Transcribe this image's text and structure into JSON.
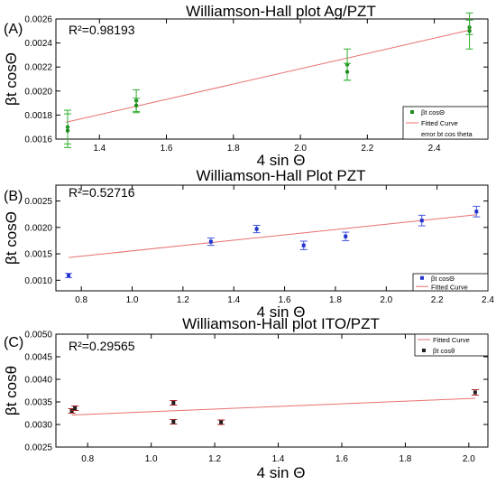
{
  "chart_data": [
    {
      "type": "scatter",
      "panel_label": "(A)",
      "title": "Williamson-Hall plot Ag/PZT",
      "xlabel": "4 sin Θ",
      "ylabel": "βt cosΘ",
      "r2_label": "R²=0.98193",
      "xlim": [
        1.27,
        2.56
      ],
      "ylim": [
        0.0016,
        0.0026
      ],
      "x_ticks": [
        1.4,
        1.6,
        1.8,
        2.0,
        2.2,
        2.4
      ],
      "x_tick_labels": [
        "1.4",
        "1.6",
        "1.8",
        "2.0",
        "2.2",
        "2.4"
      ],
      "y_ticks": [
        0.0016,
        0.0018,
        0.002,
        0.0022,
        0.0024,
        0.0026
      ],
      "y_tick_labels": [
        "0.0016",
        "0.0018",
        "0.0020",
        "0.0022",
        "0.0024",
        "0.0026"
      ],
      "grid": false,
      "legend_position": "bottom-right",
      "legend": [
        "βt cosΘ",
        "Fitted Curve",
        "error bt cos theta"
      ],
      "colors": {
        "points": "#1e8c1e",
        "error": "#2fae2f",
        "fit": "#e87070"
      },
      "series": [
        {
          "name": "βt cosΘ",
          "points": [
            {
              "x": 1.305,
              "y": 0.0017,
              "err": 0.00014
            },
            {
              "x": 1.305,
              "y": 0.00167,
              "err": 0.00014
            },
            {
              "x": 1.51,
              "y": 0.00192,
              "err": 9e-05
            },
            {
              "x": 1.51,
              "y": 0.00188,
              "err": 6e-05
            },
            {
              "x": 2.14,
              "y": 0.00222,
              "err": 0.00013
            },
            {
              "x": 2.14,
              "y": 0.00216,
              "err": 7e-05
            },
            {
              "x": 2.505,
              "y": 0.00253,
              "err": 6e-05
            },
            {
              "x": 2.505,
              "y": 0.0025,
              "err": 0.00015
            }
          ]
        }
      ],
      "fit": {
        "name": "Fitted Curve",
        "x": [
          1.3,
          2.51
        ],
        "y": [
          0.00174,
          0.00251
        ]
      }
    },
    {
      "type": "scatter",
      "panel_label": "(B)",
      "title": "Williamson-Hall Plot PZT",
      "xlabel": "4 sin Θ",
      "ylabel": "βt cosΘ",
      "r2_label": "R²=0.52716",
      "xlim": [
        0.7,
        2.4
      ],
      "ylim": [
        0.0008,
        0.0028
      ],
      "x_ticks": [
        0.8,
        1.0,
        1.2,
        1.4,
        1.6,
        1.8,
        2.0,
        2.2,
        2.4
      ],
      "x_tick_labels": [
        "0.8",
        "1.0",
        "1.2",
        "1.4",
        "1.6",
        "1.8",
        "2.0",
        "2.2",
        "2.4"
      ],
      "y_ticks": [
        0.001,
        0.0015,
        0.002,
        0.0025
      ],
      "y_tick_labels": [
        "0.0010",
        "0.0015",
        "0.0020",
        "0.0025"
      ],
      "grid": false,
      "legend_position": "bottom-right",
      "legend": [
        "βt cosΘ",
        "Fitted Curve"
      ],
      "colors": {
        "points": "#2233cc",
        "error": "#4455dd",
        "fit": "#e87070"
      },
      "series": [
        {
          "name": "βt cosΘ",
          "points": [
            {
              "x": 0.75,
              "y": 0.00109,
              "err": 4e-05
            },
            {
              "x": 1.31,
              "y": 0.00173,
              "err": 7e-05
            },
            {
              "x": 1.49,
              "y": 0.00197,
              "err": 7e-05
            },
            {
              "x": 1.675,
              "y": 0.00166,
              "err": 8e-05
            },
            {
              "x": 1.84,
              "y": 0.00183,
              "err": 8e-05
            },
            {
              "x": 2.14,
              "y": 0.00213,
              "err": 0.0001
            },
            {
              "x": 2.355,
              "y": 0.0023,
              "err": 0.0001
            }
          ]
        }
      ],
      "fit": {
        "name": "Fitted Curve",
        "x": [
          0.75,
          2.355
        ],
        "y": [
          0.00143,
          0.00224
        ]
      }
    },
    {
      "type": "scatter",
      "panel_label": "(C)",
      "title": "Williamson-Hall plot ITO/PZT",
      "xlabel": "4 sin Θ",
      "ylabel": "βt cosθ",
      "r2_label": "R²=0.29565",
      "xlim": [
        0.7,
        2.06
      ],
      "ylim": [
        0.0025,
        0.005
      ],
      "x_ticks": [
        0.8,
        1.0,
        1.2,
        1.4,
        1.6,
        1.8,
        2.0
      ],
      "x_tick_labels": [
        "0.8",
        "1.0",
        "1.2",
        "1.4",
        "1.6",
        "1.8",
        "2.0"
      ],
      "y_ticks": [
        0.0025,
        0.003,
        0.0035,
        0.004,
        0.0045,
        0.005
      ],
      "y_tick_labels": [
        "0.0025",
        "0.0030",
        "0.0035",
        "0.0040",
        "0.0045",
        "0.0050"
      ],
      "grid": false,
      "legend_position": "top-right",
      "legend": [
        "Fitted Curve",
        "βt cosθ"
      ],
      "colors": {
        "points": "#222222",
        "error": "#b02020",
        "fit": "#e87070"
      },
      "series": [
        {
          "name": "βt cosθ",
          "points": [
            {
              "x": 0.75,
              "y": 0.0033,
              "err": 5e-05
            },
            {
              "x": 0.76,
              "y": 0.00336,
              "err": 5e-05
            },
            {
              "x": 1.07,
              "y": 0.00348,
              "err": 5e-05
            },
            {
              "x": 1.07,
              "y": 0.00306,
              "err": 5e-05
            },
            {
              "x": 1.22,
              "y": 0.00305,
              "err": 5e-05
            },
            {
              "x": 2.02,
              "y": 0.00371,
              "err": 6e-05
            }
          ]
        }
      ],
      "fit": {
        "name": "Fitted Curve",
        "x": [
          0.75,
          2.02
        ],
        "y": [
          0.00321,
          0.00358
        ]
      }
    }
  ]
}
